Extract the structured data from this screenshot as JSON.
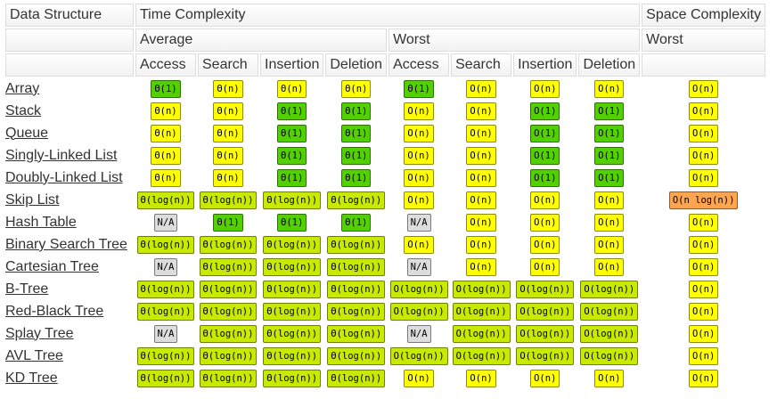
{
  "header": {
    "structure": "Data Structure",
    "time": "Time Complexity",
    "space": "Space Complexity",
    "time_groups": [
      "Average",
      "Worst"
    ],
    "space_group": "Worst",
    "operations": [
      "Access",
      "Search",
      "Insertion",
      "Deletion",
      "Access",
      "Search",
      "Insertion",
      "Deletion"
    ]
  },
  "rows": [
    {
      "name": "Array",
      "cells": [
        {
          "text": "Θ(1)",
          "color": "#53d000"
        },
        {
          "text": "Θ(n)",
          "color": "#ffff00"
        },
        {
          "text": "Θ(n)",
          "color": "#ffff00"
        },
        {
          "text": "Θ(n)",
          "color": "#ffff00"
        },
        {
          "text": "Θ(1)",
          "color": "#53d000"
        },
        {
          "text": "O(n)",
          "color": "#ffff00"
        },
        {
          "text": "O(n)",
          "color": "#ffff00"
        },
        {
          "text": "O(n)",
          "color": "#ffff00"
        },
        {
          "text": "O(n)",
          "color": "#ffff00"
        }
      ]
    },
    {
      "name": "Stack",
      "cells": [
        {
          "text": "Θ(n)",
          "color": "#ffff00"
        },
        {
          "text": "Θ(n)",
          "color": "#ffff00"
        },
        {
          "text": "Θ(1)",
          "color": "#53d000"
        },
        {
          "text": "Θ(1)",
          "color": "#53d000"
        },
        {
          "text": "O(n)",
          "color": "#ffff00"
        },
        {
          "text": "O(n)",
          "color": "#ffff00"
        },
        {
          "text": "O(1)",
          "color": "#53d000"
        },
        {
          "text": "O(1)",
          "color": "#53d000"
        },
        {
          "text": "O(n)",
          "color": "#ffff00"
        }
      ]
    },
    {
      "name": "Queue",
      "cells": [
        {
          "text": "Θ(n)",
          "color": "#ffff00"
        },
        {
          "text": "Θ(n)",
          "color": "#ffff00"
        },
        {
          "text": "Θ(1)",
          "color": "#53d000"
        },
        {
          "text": "Θ(1)",
          "color": "#53d000"
        },
        {
          "text": "O(n)",
          "color": "#ffff00"
        },
        {
          "text": "O(n)",
          "color": "#ffff00"
        },
        {
          "text": "O(1)",
          "color": "#53d000"
        },
        {
          "text": "O(1)",
          "color": "#53d000"
        },
        {
          "text": "O(n)",
          "color": "#ffff00"
        }
      ]
    },
    {
      "name": "Singly-Linked List",
      "cells": [
        {
          "text": "Θ(n)",
          "color": "#ffff00"
        },
        {
          "text": "Θ(n)",
          "color": "#ffff00"
        },
        {
          "text": "Θ(1)",
          "color": "#53d000"
        },
        {
          "text": "Θ(1)",
          "color": "#53d000"
        },
        {
          "text": "O(n)",
          "color": "#ffff00"
        },
        {
          "text": "O(n)",
          "color": "#ffff00"
        },
        {
          "text": "O(1)",
          "color": "#53d000"
        },
        {
          "text": "O(1)",
          "color": "#53d000"
        },
        {
          "text": "O(n)",
          "color": "#ffff00"
        }
      ]
    },
    {
      "name": "Doubly-Linked List",
      "cells": [
        {
          "text": "Θ(n)",
          "color": "#ffff00"
        },
        {
          "text": "Θ(n)",
          "color": "#ffff00"
        },
        {
          "text": "Θ(1)",
          "color": "#53d000"
        },
        {
          "text": "Θ(1)",
          "color": "#53d000"
        },
        {
          "text": "O(n)",
          "color": "#ffff00"
        },
        {
          "text": "O(n)",
          "color": "#ffff00"
        },
        {
          "text": "O(1)",
          "color": "#53d000"
        },
        {
          "text": "O(1)",
          "color": "#53d000"
        },
        {
          "text": "O(n)",
          "color": "#ffff00"
        }
      ]
    },
    {
      "name": "Skip List",
      "cells": [
        {
          "text": "Θ(log(n))",
          "color": "#c8ea00"
        },
        {
          "text": "Θ(log(n))",
          "color": "#c8ea00"
        },
        {
          "text": "Θ(log(n))",
          "color": "#c8ea00"
        },
        {
          "text": "Θ(log(n))",
          "color": "#c8ea00"
        },
        {
          "text": "O(n)",
          "color": "#ffff00"
        },
        {
          "text": "O(n)",
          "color": "#ffff00"
        },
        {
          "text": "O(n)",
          "color": "#ffff00"
        },
        {
          "text": "O(n)",
          "color": "#ffff00"
        },
        {
          "text": "O(n log(n))",
          "color": "#ffa54f"
        }
      ]
    },
    {
      "name": "Hash Table",
      "cells": [
        {
          "text": "N/A",
          "color": "#dddddd"
        },
        {
          "text": "Θ(1)",
          "color": "#53d000"
        },
        {
          "text": "Θ(1)",
          "color": "#53d000"
        },
        {
          "text": "Θ(1)",
          "color": "#53d000"
        },
        {
          "text": "N/A",
          "color": "#dddddd"
        },
        {
          "text": "O(n)",
          "color": "#ffff00"
        },
        {
          "text": "O(n)",
          "color": "#ffff00"
        },
        {
          "text": "O(n)",
          "color": "#ffff00"
        },
        {
          "text": "O(n)",
          "color": "#ffff00"
        }
      ]
    },
    {
      "name": "Binary Search Tree",
      "cells": [
        {
          "text": "Θ(log(n))",
          "color": "#c8ea00"
        },
        {
          "text": "Θ(log(n))",
          "color": "#c8ea00"
        },
        {
          "text": "Θ(log(n))",
          "color": "#c8ea00"
        },
        {
          "text": "Θ(log(n))",
          "color": "#c8ea00"
        },
        {
          "text": "O(n)",
          "color": "#ffff00"
        },
        {
          "text": "O(n)",
          "color": "#ffff00"
        },
        {
          "text": "O(n)",
          "color": "#ffff00"
        },
        {
          "text": "O(n)",
          "color": "#ffff00"
        },
        {
          "text": "O(n)",
          "color": "#ffff00"
        }
      ]
    },
    {
      "name": "Cartesian Tree",
      "cells": [
        {
          "text": "N/A",
          "color": "#dddddd"
        },
        {
          "text": "Θ(log(n))",
          "color": "#c8ea00"
        },
        {
          "text": "Θ(log(n))",
          "color": "#c8ea00"
        },
        {
          "text": "Θ(log(n))",
          "color": "#c8ea00"
        },
        {
          "text": "N/A",
          "color": "#dddddd"
        },
        {
          "text": "O(n)",
          "color": "#ffff00"
        },
        {
          "text": "O(n)",
          "color": "#ffff00"
        },
        {
          "text": "O(n)",
          "color": "#ffff00"
        },
        {
          "text": "O(n)",
          "color": "#ffff00"
        }
      ]
    },
    {
      "name": "B-Tree",
      "cells": [
        {
          "text": "Θ(log(n))",
          "color": "#c8ea00"
        },
        {
          "text": "Θ(log(n))",
          "color": "#c8ea00"
        },
        {
          "text": "Θ(log(n))",
          "color": "#c8ea00"
        },
        {
          "text": "Θ(log(n))",
          "color": "#c8ea00"
        },
        {
          "text": "O(log(n))",
          "color": "#c8ea00"
        },
        {
          "text": "O(log(n))",
          "color": "#c8ea00"
        },
        {
          "text": "O(log(n))",
          "color": "#c8ea00"
        },
        {
          "text": "O(log(n))",
          "color": "#c8ea00"
        },
        {
          "text": "O(n)",
          "color": "#ffff00"
        }
      ]
    },
    {
      "name": "Red-Black Tree",
      "cells": [
        {
          "text": "Θ(log(n))",
          "color": "#c8ea00"
        },
        {
          "text": "Θ(log(n))",
          "color": "#c8ea00"
        },
        {
          "text": "Θ(log(n))",
          "color": "#c8ea00"
        },
        {
          "text": "Θ(log(n))",
          "color": "#c8ea00"
        },
        {
          "text": "O(log(n))",
          "color": "#c8ea00"
        },
        {
          "text": "O(log(n))",
          "color": "#c8ea00"
        },
        {
          "text": "O(log(n))",
          "color": "#c8ea00"
        },
        {
          "text": "O(log(n))",
          "color": "#c8ea00"
        },
        {
          "text": "O(n)",
          "color": "#ffff00"
        }
      ]
    },
    {
      "name": "Splay Tree",
      "cells": [
        {
          "text": "N/A",
          "color": "#dddddd"
        },
        {
          "text": "Θ(log(n))",
          "color": "#c8ea00"
        },
        {
          "text": "Θ(log(n))",
          "color": "#c8ea00"
        },
        {
          "text": "Θ(log(n))",
          "color": "#c8ea00"
        },
        {
          "text": "N/A",
          "color": "#dddddd"
        },
        {
          "text": "O(log(n))",
          "color": "#c8ea00"
        },
        {
          "text": "O(log(n))",
          "color": "#c8ea00"
        },
        {
          "text": "O(log(n))",
          "color": "#c8ea00"
        },
        {
          "text": "O(n)",
          "color": "#ffff00"
        }
      ]
    },
    {
      "name": "AVL Tree",
      "cells": [
        {
          "text": "Θ(log(n))",
          "color": "#c8ea00"
        },
        {
          "text": "Θ(log(n))",
          "color": "#c8ea00"
        },
        {
          "text": "Θ(log(n))",
          "color": "#c8ea00"
        },
        {
          "text": "Θ(log(n))",
          "color": "#c8ea00"
        },
        {
          "text": "O(log(n))",
          "color": "#c8ea00"
        },
        {
          "text": "O(log(n))",
          "color": "#c8ea00"
        },
        {
          "text": "O(log(n))",
          "color": "#c8ea00"
        },
        {
          "text": "O(log(n))",
          "color": "#c8ea00"
        },
        {
          "text": "O(n)",
          "color": "#ffff00"
        }
      ]
    },
    {
      "name": "KD Tree",
      "cells": [
        {
          "text": "Θ(log(n))",
          "color": "#c8ea00"
        },
        {
          "text": "Θ(log(n))",
          "color": "#c8ea00"
        },
        {
          "text": "Θ(log(n))",
          "color": "#c8ea00"
        },
        {
          "text": "Θ(log(n))",
          "color": "#c8ea00"
        },
        {
          "text": "O(n)",
          "color": "#ffff00"
        },
        {
          "text": "O(n)",
          "color": "#ffff00"
        },
        {
          "text": "O(n)",
          "color": "#ffff00"
        },
        {
          "text": "O(n)",
          "color": "#ffff00"
        },
        {
          "text": "O(n)",
          "color": "#ffff00"
        }
      ]
    }
  ]
}
